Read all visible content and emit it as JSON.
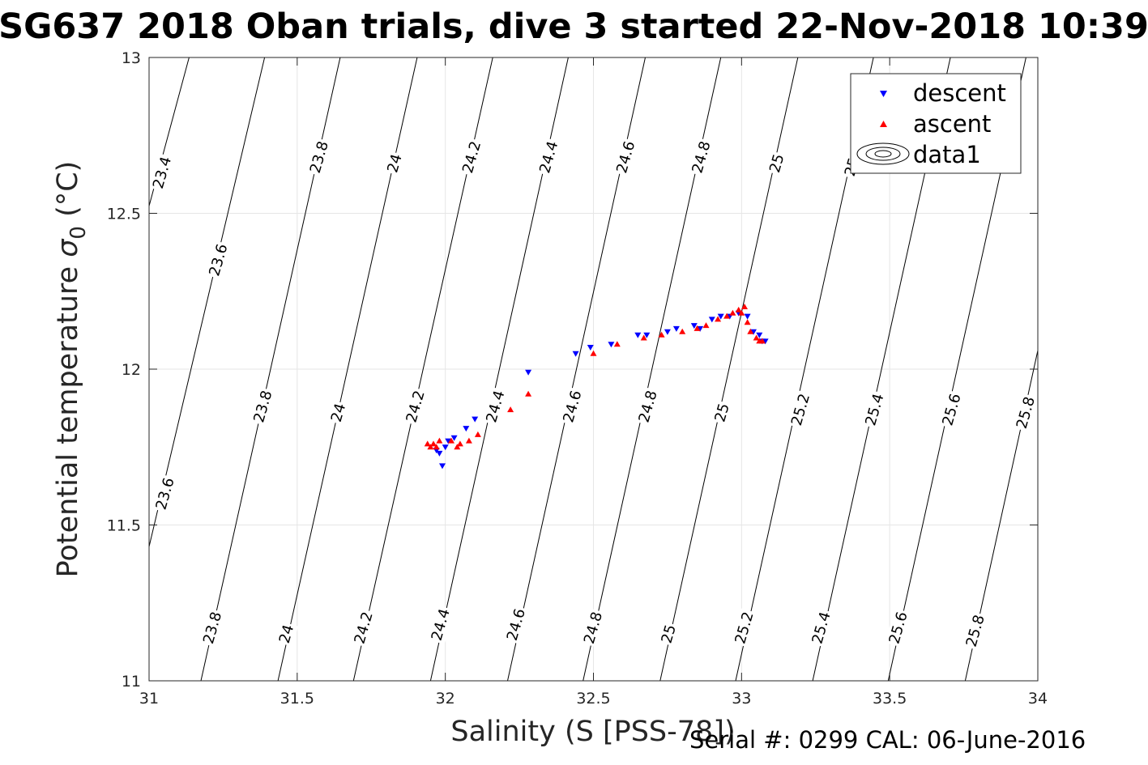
{
  "title": "SG637 2018 Oban trials, dive 3 started 22-Nov-2018 10:39",
  "footer": "Serial #: 0299 CAL: 06-June-2016",
  "chart_data": {
    "type": "scatter",
    "xlabel": "Salinity (S [PSS-78])",
    "ylabel_main": "Potential temperature ",
    "ylabel_sigma": "σ",
    "ylabel_sub": "0",
    "ylabel_unit": " (°C)",
    "xlim": [
      31,
      34
    ],
    "ylim": [
      11,
      13
    ],
    "xticks": [
      31,
      31.5,
      32,
      32.5,
      33,
      33.5,
      34
    ],
    "xtick_labels": [
      "31",
      "31.5",
      "32",
      "32.5",
      "33",
      "33.5",
      "34"
    ],
    "yticks": [
      11,
      11.5,
      12,
      12.5,
      13
    ],
    "ytick_labels": [
      "11",
      "11.5",
      "12",
      "12.5",
      "13"
    ],
    "grid": true,
    "legend_position": "top-right",
    "legend": [
      "descent",
      "ascent",
      "data1"
    ],
    "colors": {
      "descent": "#0000ff",
      "ascent": "#ff0000",
      "contour": "#000000",
      "grid": "#e6e6e6"
    },
    "contour_levels": [
      "23.4",
      "23.6",
      "23.8",
      "24",
      "24.2",
      "24.4",
      "24.6",
      "24.8",
      "25",
      "25.2",
      "25.4",
      "25.6",
      "25.8"
    ],
    "contour_lines": [
      {
        "label": "23.4",
        "points": [
          [
            30.985,
            12.47
          ],
          [
            31.135,
            13.0
          ]
        ]
      },
      {
        "label": "23.6",
        "points": [
          [
            30.985,
            11.37
          ],
          [
            31.39,
            13.0
          ]
        ]
      },
      {
        "label": "23.8",
        "points": [
          [
            31.175,
            11.0
          ],
          [
            31.645,
            13.0
          ]
        ]
      },
      {
        "label": "24",
        "points": [
          [
            31.435,
            11.0
          ],
          [
            31.905,
            13.0
          ]
        ]
      },
      {
        "label": "24.2",
        "points": [
          [
            31.69,
            11.0
          ],
          [
            32.16,
            13.0
          ]
        ]
      },
      {
        "label": "24.4",
        "points": [
          [
            31.95,
            11.0
          ],
          [
            32.415,
            13.0
          ]
        ]
      },
      {
        "label": "24.6",
        "points": [
          [
            32.21,
            11.0
          ],
          [
            32.675,
            13.0
          ]
        ]
      },
      {
        "label": "24.8",
        "points": [
          [
            32.465,
            11.0
          ],
          [
            32.93,
            13.0
          ]
        ]
      },
      {
        "label": "25",
        "points": [
          [
            32.725,
            11.0
          ],
          [
            33.19,
            13.0
          ]
        ]
      },
      {
        "label": "25.2",
        "points": [
          [
            32.98,
            11.0
          ],
          [
            33.445,
            13.0
          ]
        ]
      },
      {
        "label": "25.4",
        "points": [
          [
            33.24,
            11.0
          ],
          [
            33.705,
            13.0
          ]
        ]
      },
      {
        "label": "25.6",
        "points": [
          [
            33.495,
            11.0
          ],
          [
            33.96,
            13.0
          ]
        ]
      },
      {
        "label": "25.8",
        "points": [
          [
            33.755,
            11.0
          ],
          [
            34.0,
            12.06
          ]
        ]
      }
    ],
    "contour_labels": [
      {
        "text": "23.4",
        "x": 31.045,
        "y": 12.63
      },
      {
        "text": "23.8",
        "x": 31.575,
        "y": 12.68
      },
      {
        "text": "24",
        "x": 31.83,
        "y": 12.66
      },
      {
        "text": "24.2",
        "x": 32.09,
        "y": 12.68
      },
      {
        "text": "24.4",
        "x": 32.35,
        "y": 12.68
      },
      {
        "text": "24.6",
        "x": 32.61,
        "y": 12.68
      },
      {
        "text": "24.8",
        "x": 32.865,
        "y": 12.68
      },
      {
        "text": "25",
        "x": 33.12,
        "y": 12.66
      },
      {
        "text": "25.2",
        "x": 33.38,
        "y": 12.67
      },
      {
        "text": "23.6",
        "x": 31.235,
        "y": 12.35
      },
      {
        "text": "23.8",
        "x": 31.385,
        "y": 11.88
      },
      {
        "text": "24",
        "x": 31.64,
        "y": 11.86
      },
      {
        "text": "24.2",
        "x": 31.9,
        "y": 11.88
      },
      {
        "text": "24.4",
        "x": 32.17,
        "y": 11.88
      },
      {
        "text": "24.6",
        "x": 32.43,
        "y": 11.88
      },
      {
        "text": "24.8",
        "x": 32.685,
        "y": 11.88
      },
      {
        "text": "25",
        "x": 32.935,
        "y": 11.86
      },
      {
        "text": "25.2",
        "x": 33.2,
        "y": 11.87
      },
      {
        "text": "25.4",
        "x": 33.45,
        "y": 11.87
      },
      {
        "text": "25.6",
        "x": 33.71,
        "y": 11.87
      },
      {
        "text": "25.8",
        "x": 33.96,
        "y": 11.86
      },
      {
        "text": "23.6",
        "x": 31.055,
        "y": 11.6
      },
      {
        "text": "23.8",
        "x": 31.215,
        "y": 11.17
      },
      {
        "text": "24",
        "x": 31.465,
        "y": 11.15
      },
      {
        "text": "24.2",
        "x": 31.725,
        "y": 11.17
      },
      {
        "text": "24.4",
        "x": 31.985,
        "y": 11.18
      },
      {
        "text": "24.6",
        "x": 32.24,
        "y": 11.18
      },
      {
        "text": "24.8",
        "x": 32.5,
        "y": 11.17
      },
      {
        "text": "25",
        "x": 32.755,
        "y": 11.15
      },
      {
        "text": "25.2",
        "x": 33.01,
        "y": 11.17
      },
      {
        "text": "25.4",
        "x": 33.27,
        "y": 11.17
      },
      {
        "text": "25.6",
        "x": 33.53,
        "y": 11.17
      },
      {
        "text": "25.8",
        "x": 33.79,
        "y": 11.16
      }
    ],
    "series": [
      {
        "name": "descent",
        "marker": "triangle-down",
        "x": [
          32.28,
          31.97,
          31.98,
          31.99,
          32.0,
          32.01,
          32.03,
          32.07,
          32.1,
          32.44,
          32.49,
          32.56,
          32.65,
          32.68,
          32.75,
          32.78,
          32.84,
          32.86,
          32.9,
          32.93,
          32.96,
          32.99,
          33.02,
          33.04,
          33.06,
          33.07,
          33.08
        ],
        "y": [
          11.99,
          11.74,
          11.73,
          11.69,
          11.75,
          11.77,
          11.78,
          11.81,
          11.84,
          12.05,
          12.07,
          12.08,
          12.11,
          12.11,
          12.12,
          12.13,
          12.14,
          12.13,
          12.16,
          12.17,
          12.17,
          12.18,
          12.17,
          12.12,
          12.11,
          12.09,
          12.09
        ]
      },
      {
        "name": "ascent",
        "marker": "triangle-up",
        "x": [
          32.28,
          31.94,
          31.95,
          31.96,
          31.97,
          31.98,
          32.02,
          32.04,
          32.05,
          32.08,
          32.11,
          32.22,
          32.5,
          32.58,
          32.67,
          32.73,
          32.8,
          32.85,
          32.88,
          32.92,
          32.95,
          32.97,
          32.99,
          33.0,
          33.01,
          33.02,
          33.03,
          33.05,
          33.06,
          33.07
        ],
        "y": [
          11.92,
          11.76,
          11.75,
          11.76,
          11.75,
          11.77,
          11.77,
          11.75,
          11.76,
          11.77,
          11.79,
          11.87,
          12.05,
          12.08,
          12.1,
          12.11,
          12.12,
          12.13,
          12.14,
          12.16,
          12.17,
          12.18,
          12.19,
          12.18,
          12.2,
          12.15,
          12.12,
          12.1,
          12.09,
          12.09
        ]
      }
    ]
  }
}
